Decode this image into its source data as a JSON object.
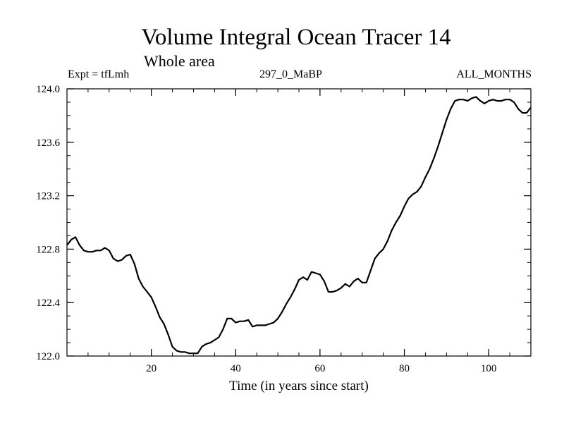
{
  "chart_data": {
    "type": "line",
    "title": "Volume Integral Ocean Tracer 14",
    "subtitle": "Whole area",
    "info_left": "Expt = tfLmh",
    "info_center": "297_0_MaBP",
    "info_right": "ALL_MONTHS",
    "xlabel": "Time (in years since start)",
    "ylabel": "",
    "xlim": [
      0,
      110
    ],
    "ylim": [
      122.0,
      124.0
    ],
    "xticks": [
      20,
      40,
      60,
      80,
      100
    ],
    "yticks": [
      "122.0",
      "122.4",
      "122.8",
      "123.2",
      "123.6",
      "124.0"
    ],
    "grid": false,
    "line_color": "#000000",
    "series": [
      {
        "x": [
          0,
          1,
          2,
          3,
          4,
          5,
          6,
          7,
          8,
          9,
          10,
          11,
          12,
          13,
          14,
          15,
          16,
          17,
          18,
          19,
          20,
          21,
          22,
          23,
          24,
          25,
          26,
          27,
          28,
          29,
          30,
          31,
          32,
          33,
          34,
          35,
          36,
          37,
          38,
          39,
          40,
          41,
          42,
          43,
          44,
          45,
          46,
          47,
          48,
          49,
          50,
          51,
          52,
          53,
          54,
          55,
          56,
          57,
          58,
          59,
          60,
          61,
          62,
          63,
          64,
          65,
          66,
          67,
          68,
          69,
          70,
          71,
          72,
          73,
          74,
          75,
          76,
          77,
          78,
          79,
          80,
          81,
          82,
          83,
          84,
          85,
          86,
          87,
          88,
          89,
          90,
          91,
          92,
          93,
          94,
          95,
          96,
          97,
          98,
          99,
          100,
          101,
          102,
          103,
          104,
          105,
          106,
          107,
          108,
          109,
          110
        ],
        "values": [
          122.83,
          122.87,
          122.89,
          122.83,
          122.79,
          122.78,
          122.78,
          122.79,
          122.79,
          122.81,
          122.79,
          122.73,
          122.71,
          122.72,
          122.75,
          122.76,
          122.69,
          122.58,
          122.52,
          122.48,
          122.44,
          122.37,
          122.29,
          122.24,
          122.16,
          122.07,
          122.04,
          122.03,
          122.03,
          122.02,
          122.02,
          122.02,
          122.07,
          122.09,
          122.1,
          122.12,
          122.14,
          122.2,
          122.28,
          122.28,
          122.25,
          122.26,
          122.26,
          122.27,
          122.22,
          122.23,
          122.23,
          122.23,
          122.24,
          122.25,
          122.28,
          122.33,
          122.39,
          122.44,
          122.5,
          122.57,
          122.59,
          122.57,
          122.63,
          122.62,
          122.61,
          122.56,
          122.48,
          122.48,
          122.49,
          122.51,
          122.54,
          122.52,
          122.56,
          122.58,
          122.55,
          122.55,
          122.64,
          122.73,
          122.77,
          122.8,
          122.86,
          122.94,
          123.0,
          123.05,
          123.12,
          123.18,
          123.21,
          123.23,
          123.27,
          123.34,
          123.4,
          123.48,
          123.57,
          123.67,
          123.77,
          123.85,
          123.91,
          123.92,
          123.92,
          123.91,
          123.93,
          123.94,
          123.91,
          123.89,
          123.91,
          123.92,
          123.91,
          123.91,
          123.92,
          123.92,
          123.9,
          123.85,
          123.82,
          123.82,
          123.86
        ]
      }
    ]
  }
}
